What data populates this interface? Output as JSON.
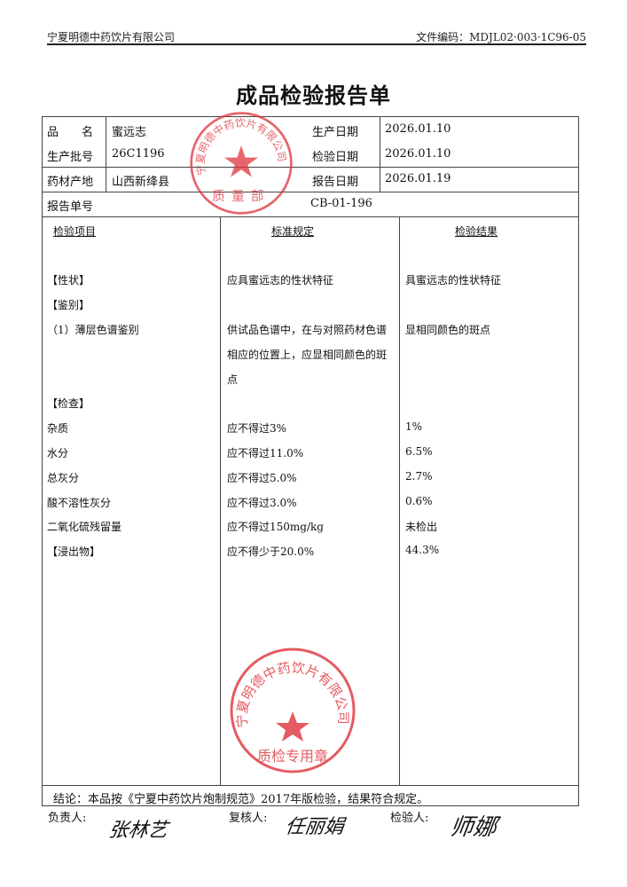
{
  "header": {
    "company": "宁夏明德中药饮片有限公司",
    "doc_code": "文件编码：MDJL02·003·1C96-05"
  },
  "title": "成品检验报告单",
  "info": {
    "name_label": "品　　名",
    "name": "蜜远志",
    "batch_label": "生产批号",
    "batch": "26C1196",
    "origin_label": "药材产地",
    "origin": "山西新绛县",
    "prod_date_label": "生产日期",
    "prod_date": "2026.01.10",
    "test_date_label": "检验日期",
    "test_date": "2026.01.10",
    "report_date_label": "报告日期",
    "report_date": "2026.01.19",
    "report_no_label": "报告单号",
    "report_no": "CB-01-196"
  },
  "columns": [
    "检验项目",
    "标准规定",
    "检验结果"
  ],
  "rows": [
    {
      "item": "【性状】",
      "std": "应具蜜远志的性状特征",
      "result": "具蜜远志的性状特征"
    },
    {
      "item": "【鉴别】",
      "std": "",
      "result": ""
    },
    {
      "item": "（1）薄层色谱鉴别",
      "std": [
        "供试品色谱中，在与对照药材色谱",
        "相应的位置上，应显相同颜色的斑",
        "点"
      ],
      "result": "显相同颜色的斑点"
    },
    {
      "item": "【检查】",
      "std": "",
      "result": ""
    },
    {
      "item": "杂质",
      "std": "应不得过3%",
      "result": "1%"
    },
    {
      "item": "水分",
      "std": "应不得过11.0%",
      "result": "6.5%"
    },
    {
      "item": "总灰分",
      "std": "应不得过5.0%",
      "result": "2.7%"
    },
    {
      "item": "酸不溶性灰分",
      "std": "应不得过3.0%",
      "result": "0.6%"
    },
    {
      "item": "二氧化硫残留量",
      "std": "应不得过150mg/kg",
      "result": "未检出"
    },
    {
      "item": "【浸出物】",
      "std": "应不得少于20.0%",
      "result": "44.3%"
    }
  ],
  "conclusion": "结论：本品按《宁夏中药饮片炮制规范》2017年版检验，结果符合规定。",
  "signatures": {
    "responsible_label": "负责人:",
    "responsible": "张林艺",
    "reviewer_label": "复核人:",
    "reviewer": "任丽娟",
    "inspector_label": "检验人:",
    "inspector": "师娜"
  },
  "stamps": {
    "top": {
      "text": "宁夏明德中药饮片有限公司",
      "bottom": "质量部"
    },
    "bottom": {
      "text": "宁夏明德中药饮片有限公司",
      "bottom": "质检专用章"
    },
    "color": "#e0323c"
  }
}
